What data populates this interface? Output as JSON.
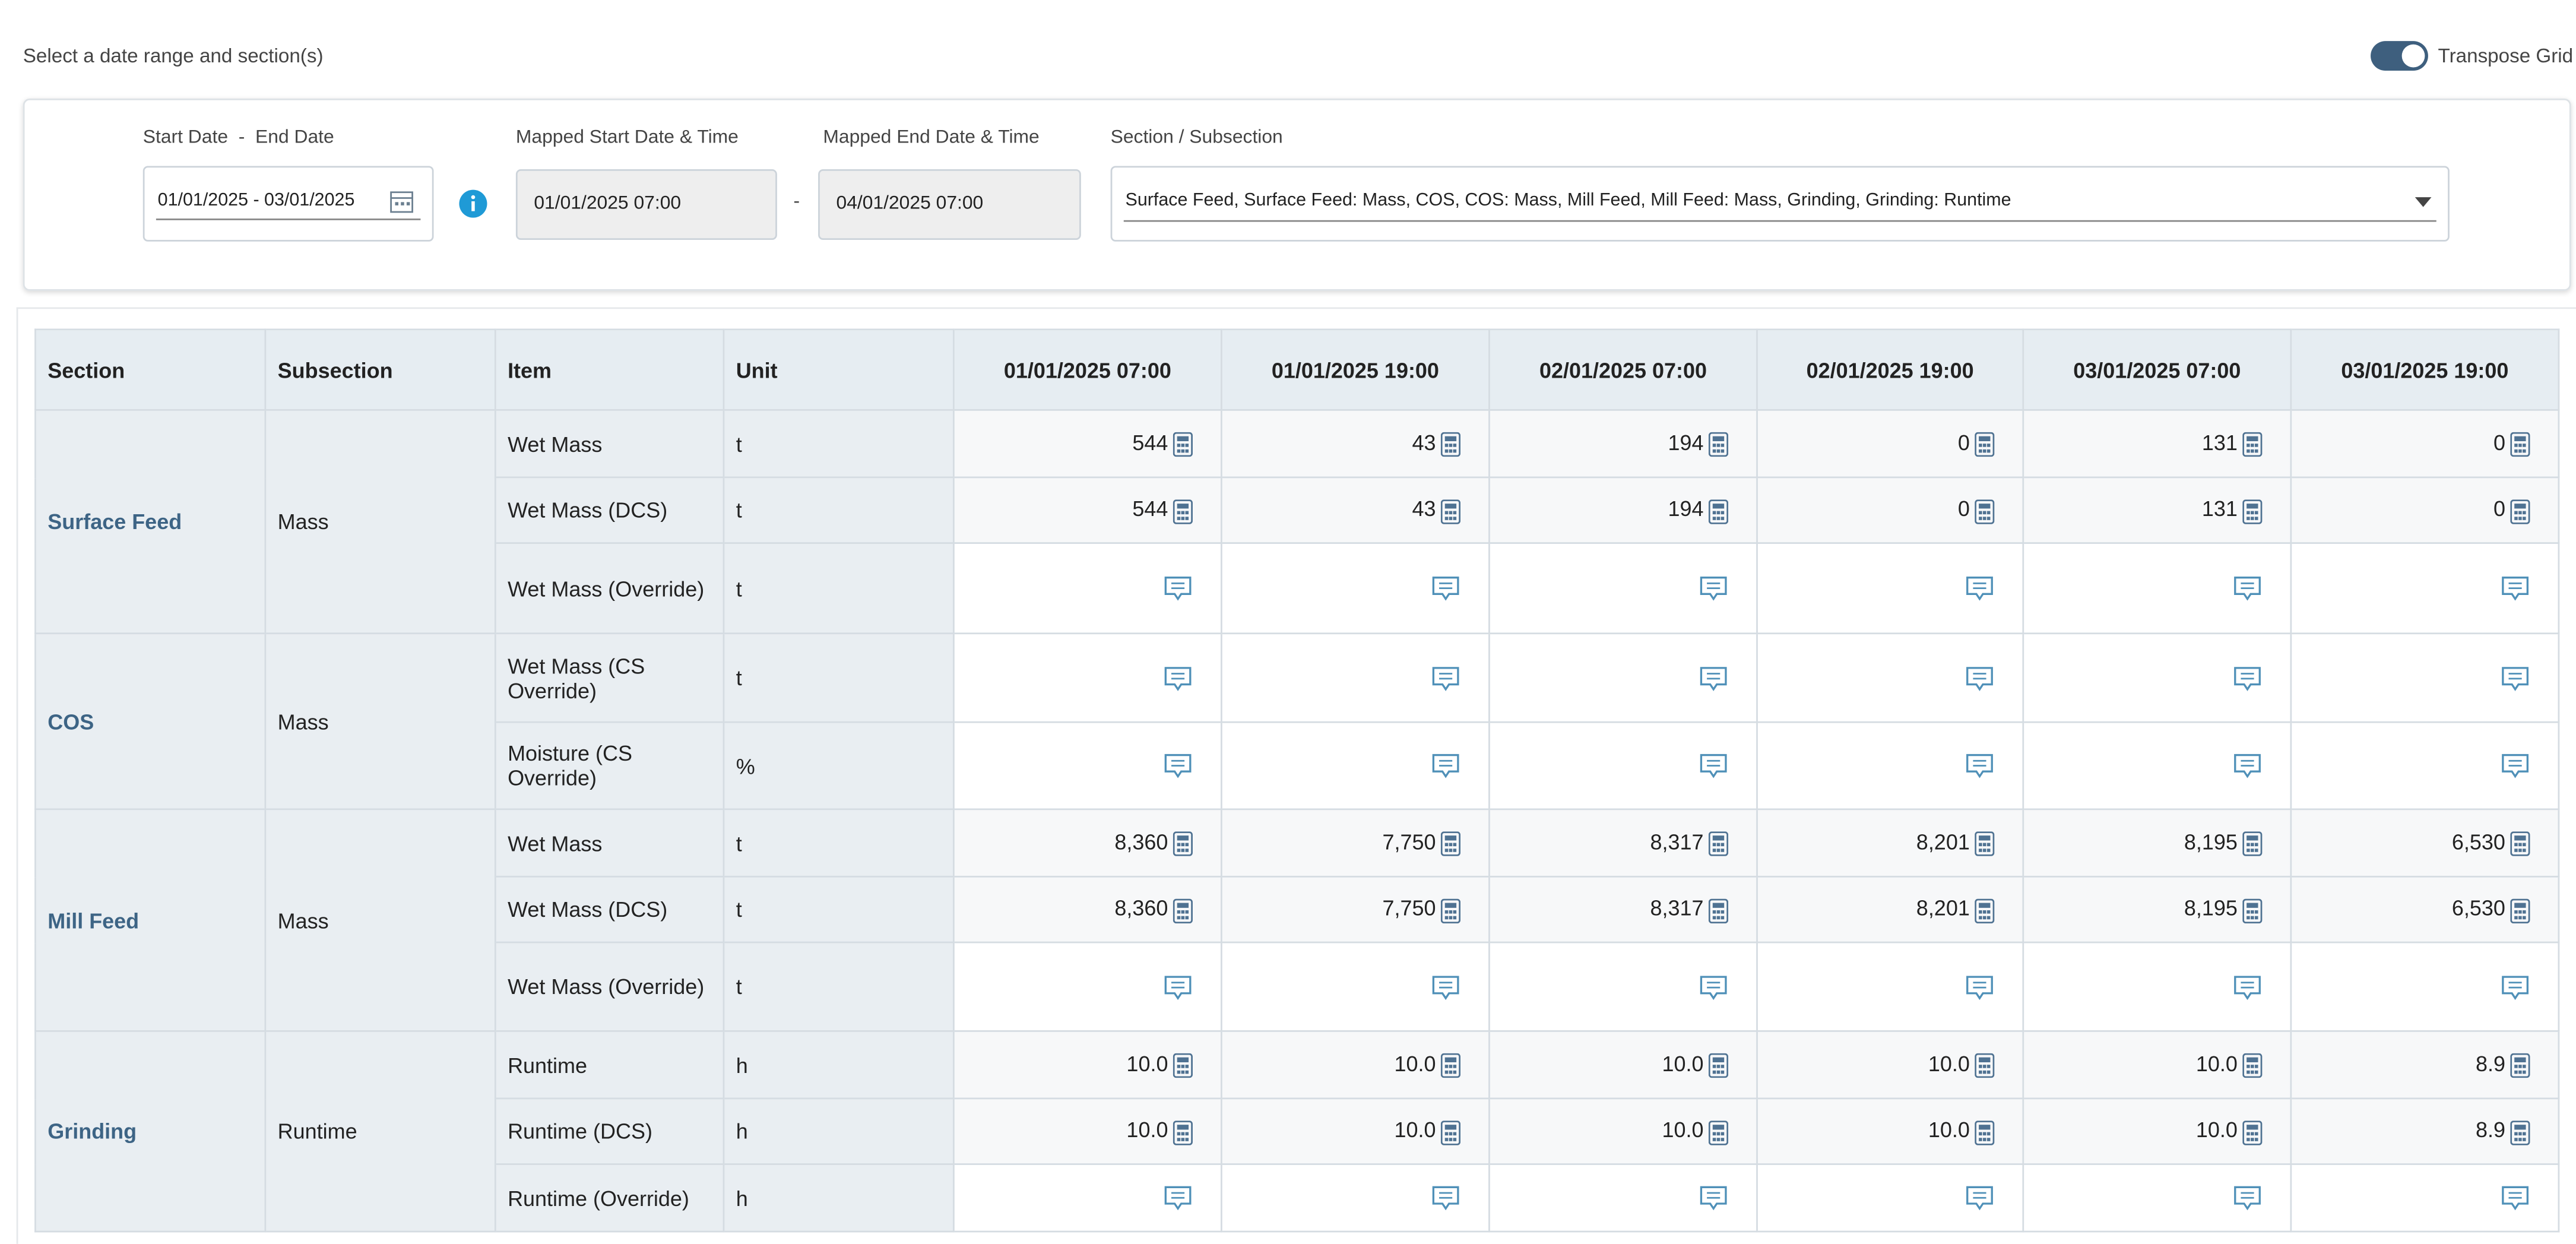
{
  "header": {
    "prompt": "Select a date range and section(s)",
    "toggle_label": "Transpose Grid"
  },
  "filters": {
    "date_label_start": "Start Date",
    "date_separator": "-",
    "date_label_end": "End Date",
    "date_range": "01/01/2025 - 03/01/2025",
    "mapped_start_label": "Mapped Start Date & Time",
    "mapped_start": "01/01/2025 07:00",
    "range_separator": "-",
    "mapped_end_label": "Mapped End Date & Time",
    "mapped_end": "04/01/2025 07:00",
    "section_label": "Section / Subsection",
    "section_value": "Surface Feed, Surface Feed: Mass, COS, COS: Mass, Mill Feed, Mill Feed: Mass, Grinding, Grinding: Runtime"
  },
  "table": {
    "columns": [
      "Section",
      "Subsection",
      "Item",
      "Unit",
      "01/01/2025 07:00",
      "01/01/2025 19:00",
      "02/01/2025 07:00",
      "02/01/2025 19:00",
      "03/01/2025 07:00",
      "03/01/2025 19:00"
    ],
    "groups": [
      {
        "section": "Surface Feed",
        "subsection": "Mass",
        "rows": [
          {
            "item": "Wet Mass",
            "unit": "t",
            "values": [
              "544",
              "43",
              "194",
              "0",
              "131",
              "0"
            ]
          },
          {
            "item": "Wet Mass (DCS)",
            "unit": "t",
            "values": [
              "544",
              "43",
              "194",
              "0",
              "131",
              "0"
            ]
          },
          {
            "item": "Wet Mass (Override)",
            "unit": "t",
            "values": [
              null,
              null,
              null,
              null,
              null,
              null
            ]
          }
        ]
      },
      {
        "section": "COS",
        "subsection": "Mass",
        "rows": [
          {
            "item": "Wet Mass (CS Override)",
            "unit": "t",
            "values": [
              null,
              null,
              null,
              null,
              null,
              null
            ]
          },
          {
            "item": "Moisture (CS Override)",
            "unit": "%",
            "values": [
              null,
              null,
              null,
              null,
              null,
              null
            ]
          }
        ]
      },
      {
        "section": "Mill Feed",
        "subsection": "Mass",
        "rows": [
          {
            "item": "Wet Mass",
            "unit": "t",
            "values": [
              "8,360",
              "7,750",
              "8,317",
              "8,201",
              "8,195",
              "6,530"
            ]
          },
          {
            "item": "Wet Mass (DCS)",
            "unit": "t",
            "values": [
              "8,360",
              "7,750",
              "8,317",
              "8,201",
              "8,195",
              "6,530"
            ]
          },
          {
            "item": "Wet Mass (Override)",
            "unit": "t",
            "values": [
              null,
              null,
              null,
              null,
              null,
              null
            ]
          }
        ]
      },
      {
        "section": "Grinding",
        "subsection": "Runtime",
        "rows": [
          {
            "item": "Runtime",
            "unit": "h",
            "values": [
              "10.0",
              "10.0",
              "10.0",
              "10.0",
              "10.0",
              "8.9"
            ]
          },
          {
            "item": "Runtime (DCS)",
            "unit": "h",
            "values": [
              "10.0",
              "10.0",
              "10.0",
              "10.0",
              "10.0",
              "8.9"
            ]
          },
          {
            "item": "Runtime (Override)",
            "unit": "h",
            "values": [
              null,
              null,
              null,
              null,
              null,
              null
            ]
          }
        ]
      }
    ]
  }
}
